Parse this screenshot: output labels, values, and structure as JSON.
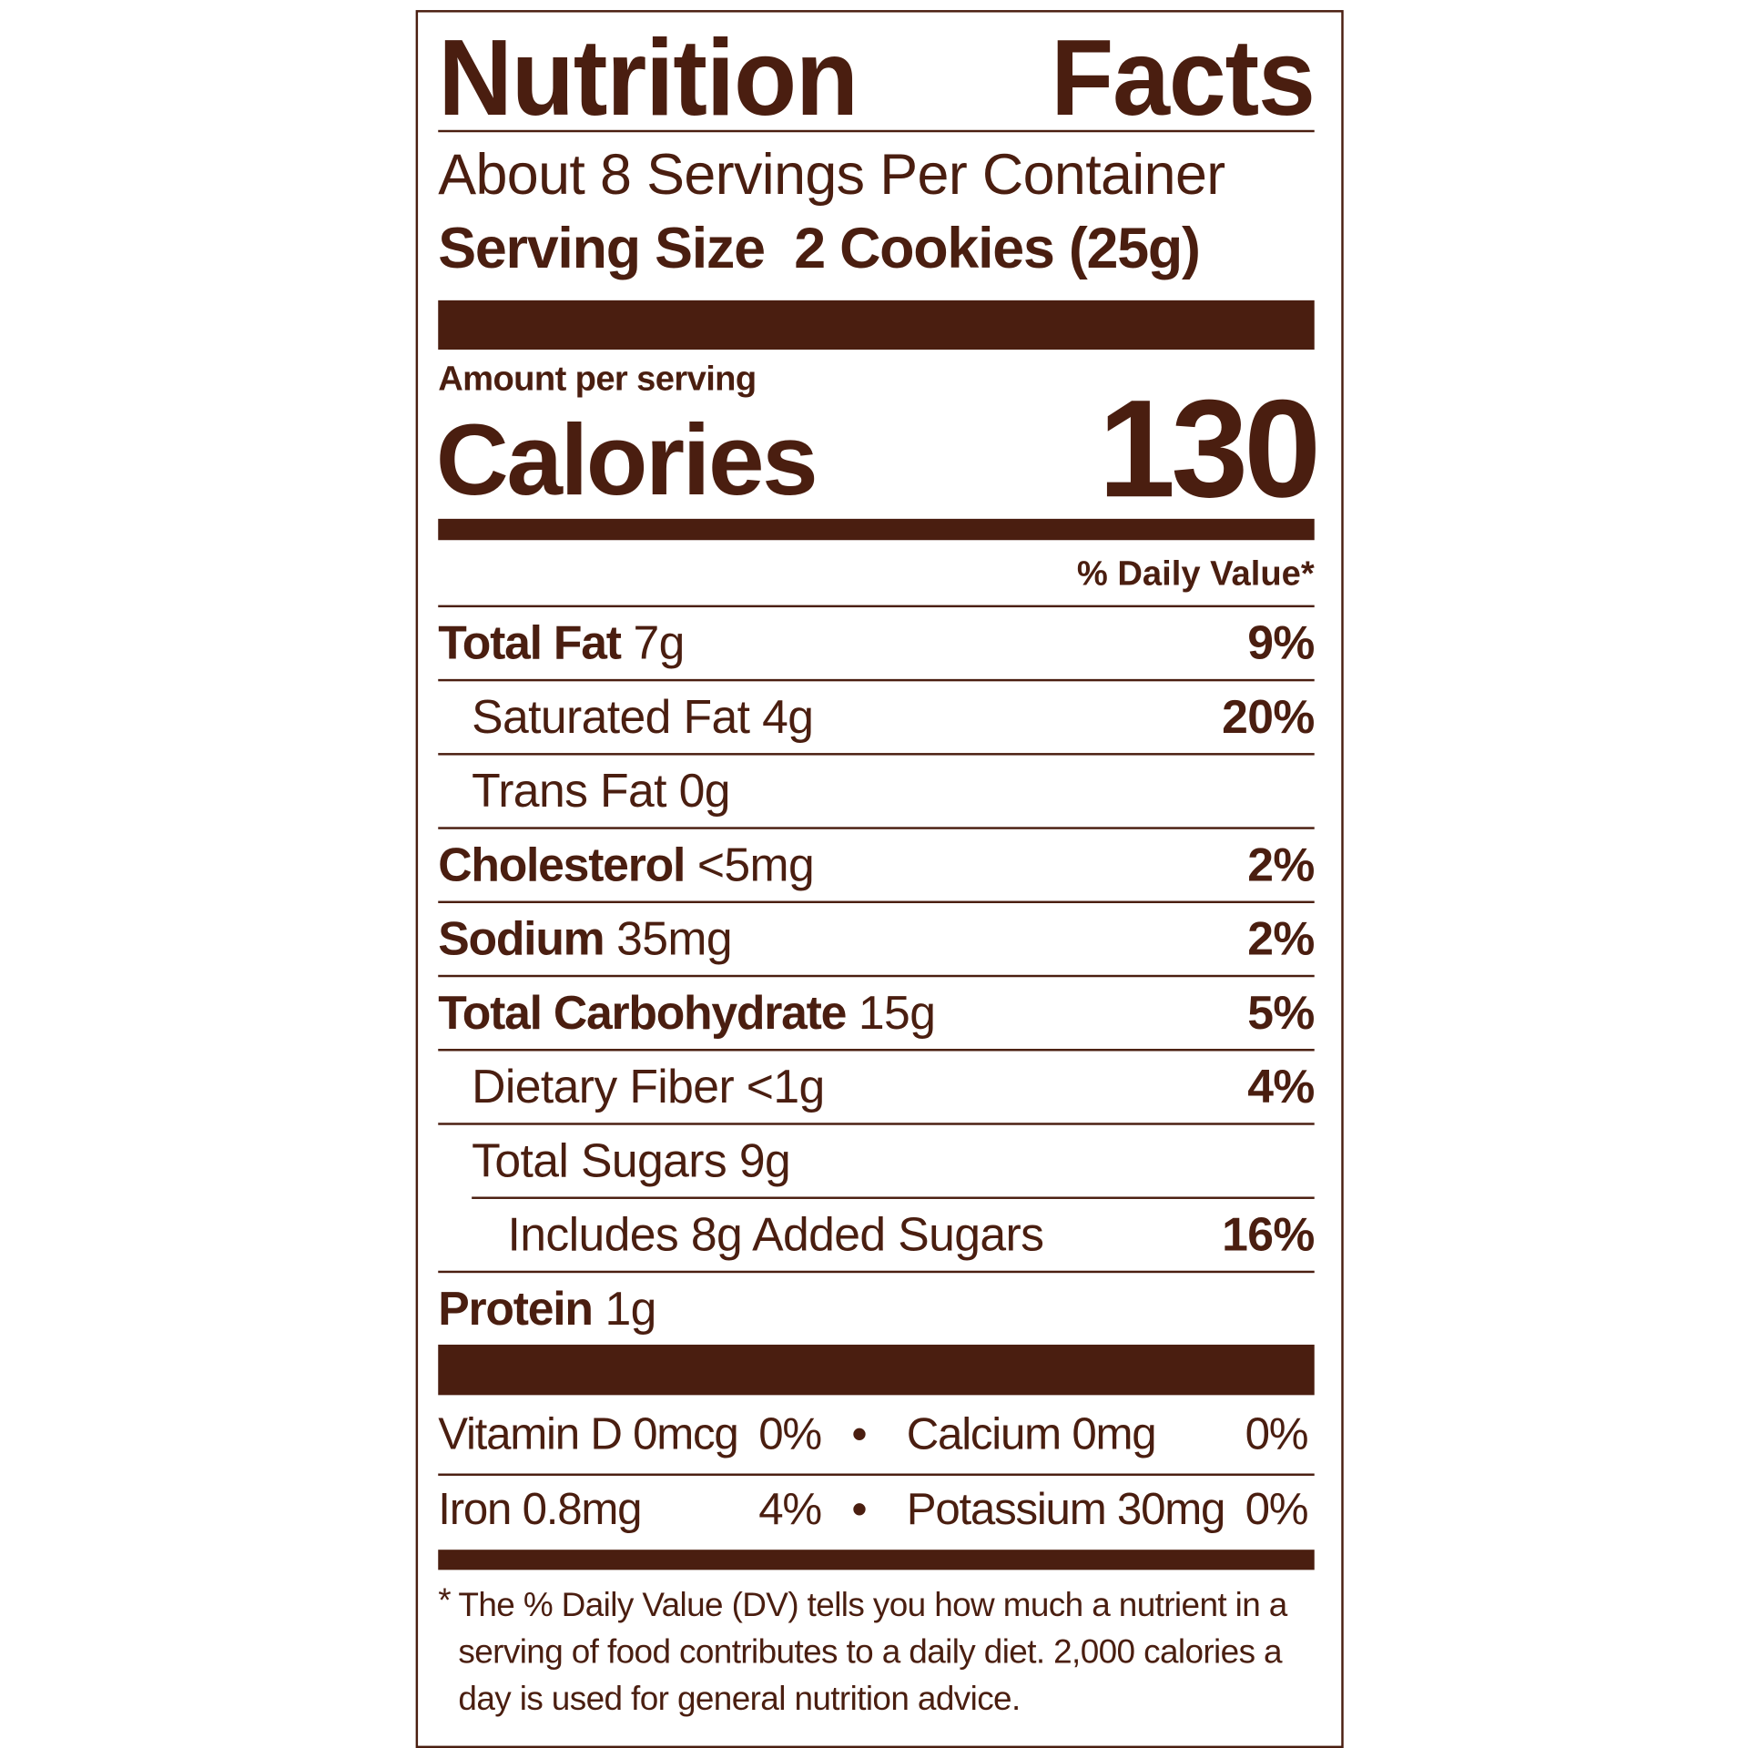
{
  "label": {
    "title_word1": "Nutrition",
    "title_word2": "Facts",
    "servings_per_container": "About 8 Servings Per Container",
    "serving_size_label": "Serving Size",
    "serving_size_value": "2 Cookies (25g)",
    "amount_per_serving": "Amount per serving",
    "calories_label": "Calories",
    "calories_value": "130",
    "daily_value_header": "% Daily Value*",
    "nutrients": [
      {
        "name": "Total Fat",
        "amount": "7g",
        "dv": "9%"
      },
      {
        "name": "Saturated Fat",
        "amount": "4g",
        "dv": "20%"
      },
      {
        "name": "Trans Fat",
        "amount": "0g",
        "dv": ""
      },
      {
        "name": "Cholesterol",
        "amount": "<5mg",
        "dv": "2%"
      },
      {
        "name": "Sodium",
        "amount": "35mg",
        "dv": "2%"
      },
      {
        "name": "Total Carbohydrate",
        "amount": "15g",
        "dv": "5%"
      },
      {
        "name": "Dietary Fiber",
        "amount": "<1g",
        "dv": "4%"
      },
      {
        "name": "Total Sugars",
        "amount": "9g",
        "dv": ""
      },
      {
        "name": "Includes 8g Added Sugars",
        "amount": "",
        "dv": "16%"
      },
      {
        "name": "Protein",
        "amount": "1g",
        "dv": ""
      }
    ],
    "vitamins": [
      {
        "name": "Vitamin D 0mcg",
        "dv": "0%"
      },
      {
        "name": "Calcium 0mg",
        "dv": "0%"
      },
      {
        "name": "Iron 0.8mg",
        "dv": "4%"
      },
      {
        "name": "Potassium 30mg",
        "dv": "0%"
      }
    ],
    "bullet": "•",
    "footnote_mark": "*",
    "footnote": "The % Daily Value (DV) tells you how much a nutrient in a serving of food contributes to a daily diet. 2,000 calories a day is used for general nutrition advice.",
    "text_color": "#4a1e10"
  }
}
